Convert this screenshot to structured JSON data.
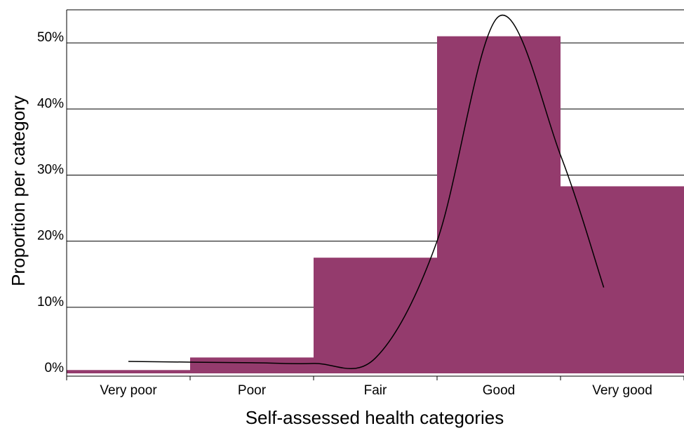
{
  "chart_data": {
    "type": "bar",
    "title": "",
    "xlabel": "Self-assessed health categories",
    "ylabel": "Proportion per category",
    "categories": [
      "Very poor",
      "Poor",
      "Fair",
      "Good",
      "Very good"
    ],
    "values": [
      0.5,
      2.4,
      17.5,
      51.0,
      28.3
    ],
    "value_unit": "%",
    "ylim": [
      0,
      55
    ],
    "yticks": [
      0,
      10,
      20,
      30,
      40,
      50
    ],
    "ytick_labels": [
      "0%",
      "10%",
      "20%",
      "30%",
      "40%",
      "50%"
    ],
    "grid": true,
    "legend": false,
    "colors": {
      "bar": "#943b6d",
      "curve": "#000000",
      "gridline": "#000000"
    },
    "overlay_curve": {
      "type": "smooth-line",
      "x": [
        0,
        1,
        1.5,
        2,
        2.5,
        3,
        3.5,
        3.85
      ],
      "y": [
        1.8,
        1.6,
        1.5,
        2.3,
        20.0,
        54.0,
        33.0,
        13.0
      ]
    }
  }
}
